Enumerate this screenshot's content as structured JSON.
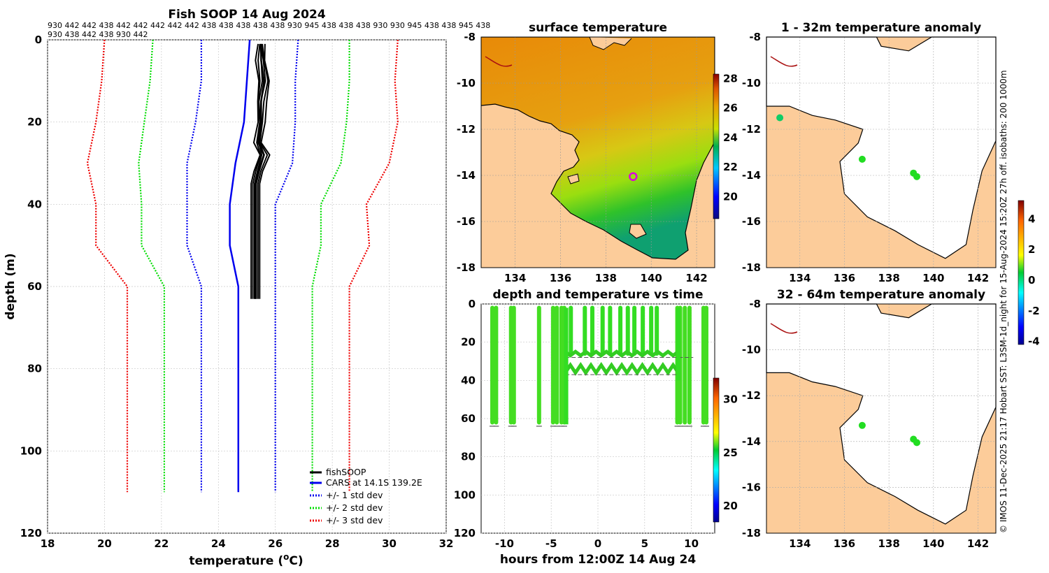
{
  "chart_data": [
    {
      "type": "line",
      "title": "Fish SOOP 14 Aug 2024",
      "xlabel": "temperature (",
      "xlabel_sup": "o",
      "xlabel_unit": "C)",
      "ylabel": "depth (m)",
      "xlim": [
        18,
        32
      ],
      "ylim": [
        120,
        0
      ],
      "xticks": [
        "18",
        "20",
        "22",
        "24",
        "26",
        "28",
        "30",
        "32"
      ],
      "yticks": [
        "0",
        "20",
        "40",
        "60",
        "80",
        "100",
        "120"
      ],
      "top_codes_line1": "930 442 442 438 442 442 442 442 442 438 438 438 438 438 930 945 438 438 438 930 930 945 438 438 945 438",
      "top_codes_line2": "930 438 442 438 930 442",
      "legend": [
        "fishSOOP",
        "CARS at 14.1S 139.2E",
        "+/- 1 std dev",
        "+/- 2 std dev",
        "+/- 3 std dev"
      ],
      "series": [
        {
          "name": "CARS at 14.1S 139.2E",
          "color": "#0000ee",
          "depth": [
            0,
            10,
            20,
            30,
            40,
            50,
            60,
            110
          ],
          "temp": [
            25.1,
            25.0,
            24.9,
            24.6,
            24.4,
            24.4,
            24.7,
            24.7
          ]
        },
        {
          "name": "+1 std dev",
          "color": "#0000ee",
          "dotted": true,
          "depth": [
            0,
            10,
            20,
            30,
            40,
            50,
            60,
            110
          ],
          "temp": [
            26.8,
            26.7,
            26.7,
            26.6,
            26.0,
            26.0,
            26.0,
            26.0
          ]
        },
        {
          "name": "-1 std dev",
          "color": "#0000ee",
          "dotted": true,
          "depth": [
            0,
            10,
            20,
            30,
            40,
            50,
            60,
            110
          ],
          "temp": [
            23.4,
            23.4,
            23.2,
            22.9,
            22.9,
            22.9,
            23.4,
            23.4
          ]
        },
        {
          "name": "+2 std dev",
          "color": "#00dd00",
          "dotted": true,
          "depth": [
            0,
            10,
            20,
            30,
            40,
            50,
            60,
            110
          ],
          "temp": [
            28.6,
            28.6,
            28.5,
            28.3,
            27.6,
            27.6,
            27.3,
            27.3
          ]
        },
        {
          "name": "-2 std dev",
          "color": "#00dd00",
          "dotted": true,
          "depth": [
            0,
            10,
            20,
            30,
            40,
            50,
            60,
            110
          ],
          "temp": [
            21.7,
            21.6,
            21.4,
            21.2,
            21.3,
            21.3,
            22.1,
            22.1
          ]
        },
        {
          "name": "+3 std dev",
          "color": "#ee0000",
          "dotted": true,
          "depth": [
            0,
            10,
            20,
            30,
            40,
            50,
            60,
            110
          ],
          "temp": [
            30.3,
            30.2,
            30.3,
            30.0,
            29.2,
            29.3,
            28.6,
            28.6
          ]
        },
        {
          "name": "-3 std dev",
          "color": "#ee0000",
          "dotted": true,
          "depth": [
            0,
            10,
            20,
            30,
            40,
            50,
            60,
            110
          ],
          "temp": [
            20.0,
            19.9,
            19.7,
            19.4,
            19.7,
            19.7,
            20.8,
            20.8
          ]
        },
        {
          "name": "fishSOOP",
          "color": "#000000",
          "depth": [
            1,
            5,
            10,
            15,
            20,
            25,
            28,
            32,
            35,
            40,
            50,
            60,
            63
          ],
          "temp": [
            25.5,
            25.5,
            25.6,
            25.5,
            25.5,
            25.4,
            25.6,
            25.4,
            25.3,
            25.3,
            25.3,
            25.3,
            25.3
          ]
        }
      ]
    },
    {
      "type": "heatmap",
      "title": "surface temperature",
      "xticks": [
        "134",
        "136",
        "138",
        "140",
        "142"
      ],
      "yticks": [
        "-8",
        "-10",
        "-12",
        "-14",
        "-16",
        "-18"
      ],
      "xlim": [
        132.5,
        142.8
      ],
      "ylim": [
        -18,
        -8
      ],
      "marker": [
        139.2,
        -14.05
      ],
      "colorbar": {
        "min": 18.5,
        "max": 28.3,
        "ticks": [
          "20",
          "22",
          "24",
          "26",
          "28"
        ]
      }
    },
    {
      "type": "scatter",
      "title": "depth and temperature vs time",
      "xlabel": "hours from 12:00Z 14 Aug 24",
      "xlim": [
        -12.5,
        12.5
      ],
      "ylim": [
        120,
        0
      ],
      "xticks": [
        "-10",
        "-5",
        "0",
        "5",
        "10"
      ],
      "yticks": [
        "0",
        "20",
        "40",
        "60",
        "80",
        "100",
        "120"
      ],
      "dives_hours": [
        -11.3,
        -10.9,
        -9.3,
        -9.0,
        -6.3,
        -4.8,
        -4.4,
        -3.9,
        -3.6,
        -2.9,
        -1.4,
        -0.6,
        0.5,
        1.3,
        2.4,
        3.2,
        3.9,
        4.8,
        5.7,
        6.3,
        8.5,
        8.8,
        9.3,
        9.8,
        11.3,
        11.6
      ],
      "colorbar": {
        "min": 18.5,
        "max": 32,
        "ticks": [
          "20",
          "25",
          "30"
        ]
      }
    },
    {
      "type": "scatter",
      "title": "1 - 32m temperature anomaly",
      "xticks": [
        "134",
        "136",
        "138",
        "140",
        "142"
      ],
      "yticks": [
        "-8",
        "-10",
        "-12",
        "-14",
        "-16",
        "-18"
      ],
      "points": [
        [
          133.1,
          -11.5
        ],
        [
          136.8,
          -13.3
        ],
        [
          139.1,
          -13.9
        ],
        [
          139.25,
          -14.05
        ]
      ]
    },
    {
      "type": "scatter",
      "title": "32 - 64m temperature anomaly",
      "xticks": [
        "134",
        "136",
        "138",
        "140",
        "142"
      ],
      "yticks": [
        "-8",
        "-10",
        "-12",
        "-14",
        "-16",
        "-18"
      ],
      "points": [
        [
          136.8,
          -13.3
        ],
        [
          139.1,
          -13.9
        ],
        [
          139.25,
          -14.05
        ]
      ],
      "colorbar": {
        "min": -4.2,
        "max": 5.2,
        "ticks": [
          "4",
          "2",
          "0",
          "-2",
          "-4"
        ]
      }
    }
  ],
  "footer": {
    "vertical_note": "© IMOS 11-Dec-2025 21:17 Hobart SST: L3SM-1d_night for 15-Aug-2024 15:20Z 27h off. isobaths: 200  1000m"
  }
}
